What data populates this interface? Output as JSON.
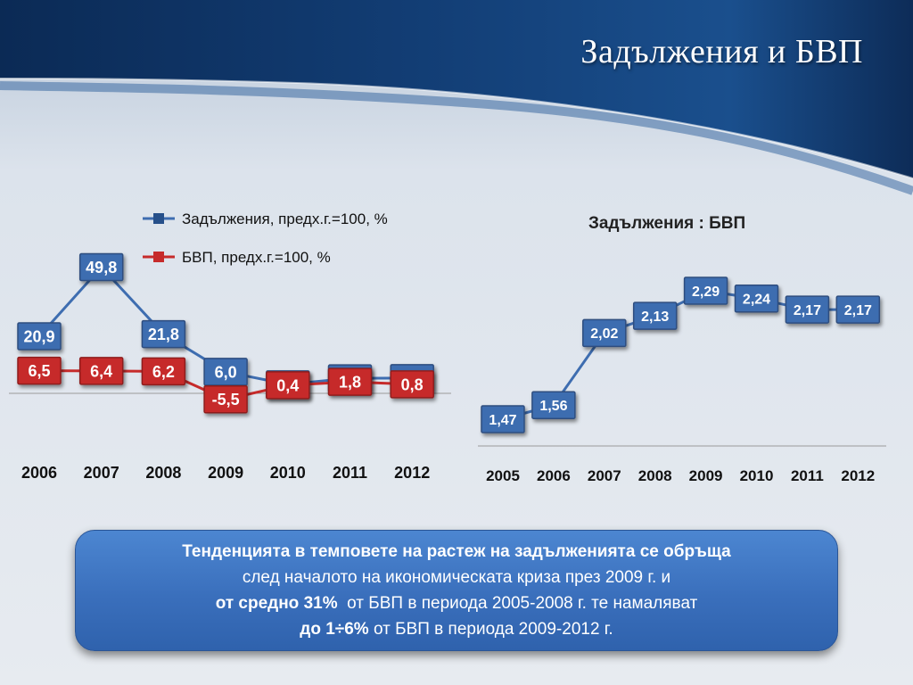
{
  "slide": {
    "title": "Задължения и БВП",
    "colors": {
      "header_blue": "#123a6b",
      "background": "#dfe5ec"
    }
  },
  "chart_data": [
    {
      "type": "line",
      "x": [
        "2006",
        "2007",
        "2008",
        "2009",
        "2010",
        "2011",
        "2012"
      ],
      "series": [
        {
          "name": "Задължения, предх.г.=100, %",
          "color": "#3e6db0",
          "values": [
            20.9,
            49.8,
            21.8,
            6.0,
            0.8,
            3.3,
            3.4
          ],
          "labels": [
            "20,9",
            "49,8",
            "21,8",
            "6,0",
            "0,8",
            "3,3",
            "3,4"
          ]
        },
        {
          "name": "БВП, предх.г.=100, %",
          "color": "#c62b2b",
          "values": [
            6.5,
            6.4,
            6.2,
            -5.5,
            0.4,
            1.8,
            0.8
          ],
          "labels": [
            "6,5",
            "6,4",
            "6,2",
            "-5,5",
            "0,4",
            "1,8",
            "0,8"
          ]
        }
      ],
      "title": "",
      "legend": "top"
    },
    {
      "type": "line",
      "title": "Задължения : БВП",
      "x": [
        "2005",
        "2006",
        "2007",
        "2008",
        "2009",
        "2010",
        "2011",
        "2012"
      ],
      "series": [
        {
          "color": "#3e6db0",
          "values": [
            1.47,
            1.56,
            2.02,
            2.13,
            2.29,
            2.24,
            2.17,
            2.17
          ],
          "labels": [
            "1,47",
            "1,56",
            "2,02",
            "2,13",
            "2,29",
            "2,24",
            "2,17",
            "2,17"
          ]
        }
      ]
    }
  ],
  "summary": {
    "line1": "Тенденцията в темповете на растеж на задълженията се обръща",
    "line2": "след началото на икономическата криза през 2009 г. и",
    "line3_bold": "от средно 31%",
    "line3_rest": "от БВП в периода 2005-2008 г. те намаляват",
    "line4_bold": "до 1÷6%",
    "line4_rest": "от БВП в периода 2009-2012 г."
  }
}
